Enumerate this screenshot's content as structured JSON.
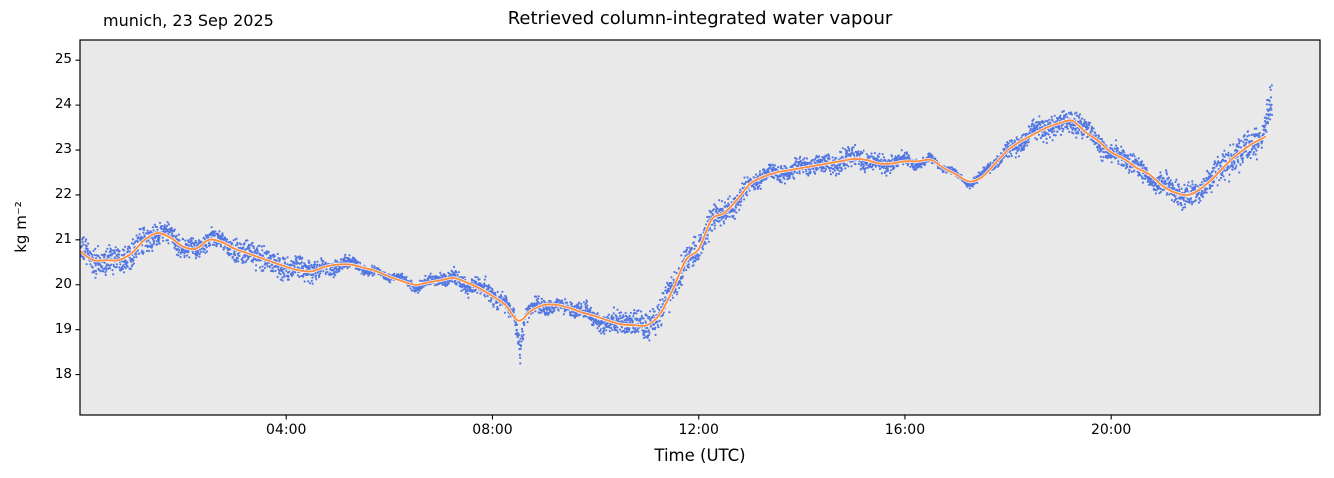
{
  "chart_data": {
    "type": "scatter",
    "title": "Retrieved column-integrated water vapour",
    "corner_label": "munich, 23 Sep 2025",
    "xlabel": "Time (UTC)",
    "ylabel": "kg m⁻²",
    "xlim": [
      0,
      24.05
    ],
    "ylim": [
      17.1,
      25.45
    ],
    "x_ticks": [
      {
        "value": 4,
        "label": "04:00"
      },
      {
        "value": 8,
        "label": "08:00"
      },
      {
        "value": 12,
        "label": "12:00"
      },
      {
        "value": 16,
        "label": "16:00"
      },
      {
        "value": 20,
        "label": "20:00"
      }
    ],
    "y_ticks": [
      18,
      19,
      20,
      21,
      22,
      23,
      24,
      25
    ],
    "grid": false,
    "legend": "none",
    "colors": {
      "figure_bg": "#ffffff",
      "plot_bg": "#e9e9e9",
      "scatter": "#4169e1",
      "line": "#ff8c3a",
      "line_halo": "#ffffff",
      "axis": "#000000"
    },
    "series": [
      {
        "name": "smoothed",
        "type": "line",
        "x_start": 0,
        "x_step": 0.25,
        "y": [
          20.75,
          20.55,
          20.55,
          20.55,
          20.7,
          21.0,
          21.15,
          21.05,
          20.85,
          20.8,
          21.0,
          20.95,
          20.8,
          20.7,
          20.6,
          20.5,
          20.4,
          20.32,
          20.3,
          20.4,
          20.45,
          20.45,
          20.38,
          20.3,
          20.18,
          20.08,
          20.0,
          20.05,
          20.1,
          20.15,
          20.05,
          19.92,
          19.75,
          19.55,
          19.2,
          19.42,
          19.55,
          19.55,
          19.48,
          19.38,
          19.3,
          19.2,
          19.12,
          19.1,
          19.1,
          19.35,
          19.9,
          20.55,
          20.8,
          21.45,
          21.6,
          21.9,
          22.25,
          22.4,
          22.5,
          22.55,
          22.6,
          22.65,
          22.7,
          22.75,
          22.8,
          22.78,
          22.7,
          22.7,
          22.75,
          22.75,
          22.78,
          22.6,
          22.45,
          22.3,
          22.4,
          22.7,
          23.0,
          23.2,
          23.35,
          23.5,
          23.6,
          23.65,
          23.4,
          23.2,
          22.95,
          22.8,
          22.6,
          22.45,
          22.2,
          22.05,
          22.0,
          22.15,
          22.4,
          22.7,
          22.95,
          23.15,
          23.3
        ]
      },
      {
        "name": "raw-retrievals",
        "type": "scatter",
        "derived": "smoothed-plus-noise",
        "n_points": 5600,
        "t_start": 0.02,
        "t_end": 23.12,
        "seed": 1234,
        "noise": {
          "base_sd": 0.2,
          "mod1_amp": 0.06,
          "mod1_freq": 1.7,
          "mod1_phase": 1.0,
          "mod2_amp": 0.07,
          "mod2_freq": 0.63,
          "mod2_phase": 0.5
        },
        "spikes": [
          {
            "t": 8.54,
            "width": 0.1,
            "dv": -0.9,
            "note": "dip to ~18.3"
          },
          {
            "t": 23.12,
            "width": 0.2,
            "dv": 1.2,
            "note": "final rise to ~24.4"
          }
        ]
      }
    ]
  }
}
